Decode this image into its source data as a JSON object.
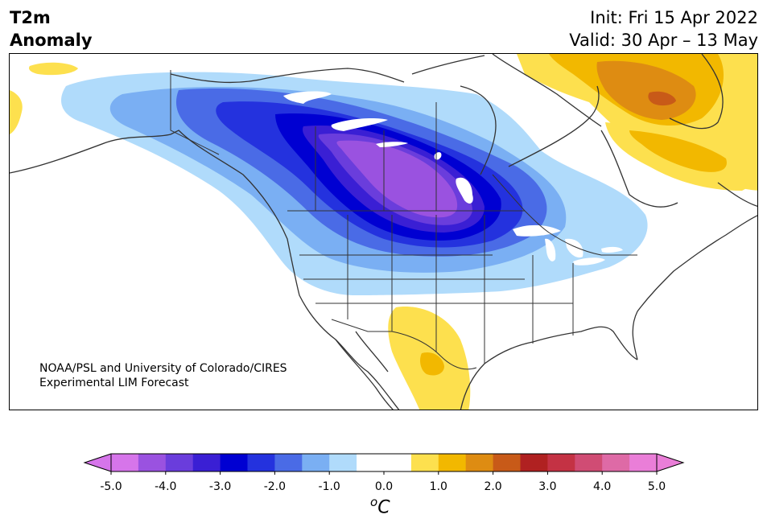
{
  "title": {
    "left_line1": "T2m",
    "left_line2": "Anomaly",
    "right_line1": "Init: Fri 15 Apr 2022",
    "right_line2": "Valid: 30 Apr – 13 May"
  },
  "credit": {
    "line1": "NOAA/PSL and University of Colorado/CIRES",
    "line2": "Experimental LIM Forecast"
  },
  "colorbar": {
    "unit_base": "C",
    "unit_sup": "o",
    "ticks": [
      "-5.0",
      "-4.0",
      "-3.0",
      "-2.0",
      "-1.0",
      "0.0",
      "1.0",
      "2.0",
      "3.0",
      "4.0",
      "5.0"
    ],
    "colors": [
      "#d675ea",
      "#9a52e0",
      "#6a3ddc",
      "#3a1fd4",
      "#0000d2",
      "#2432de",
      "#4a6be6",
      "#7aaff3",
      "#b0dbfb",
      "#ffffff",
      "#ffffff",
      "#fde04e",
      "#f2b800",
      "#de8c12",
      "#c85a18",
      "#b02121",
      "#c43244",
      "#d04c74",
      "#de6aa6",
      "#ea7ed8"
    ],
    "under_color": "#d675ea",
    "over_color": "#ea7ed8"
  },
  "map": {
    "colors": {
      "c1": "#b0dbfb",
      "c2": "#7aaff3",
      "c3": "#4a6be6",
      "c4": "#2432de",
      "c5": "#0000d2",
      "c6": "#3a1fd4",
      "c7": "#6a3ddc",
      "c8": "#9a52e0",
      "w1": "#fde04e",
      "w2": "#f2b800",
      "w3": "#de8c12",
      "w4": "#c85a18",
      "coast": "#333333"
    }
  }
}
